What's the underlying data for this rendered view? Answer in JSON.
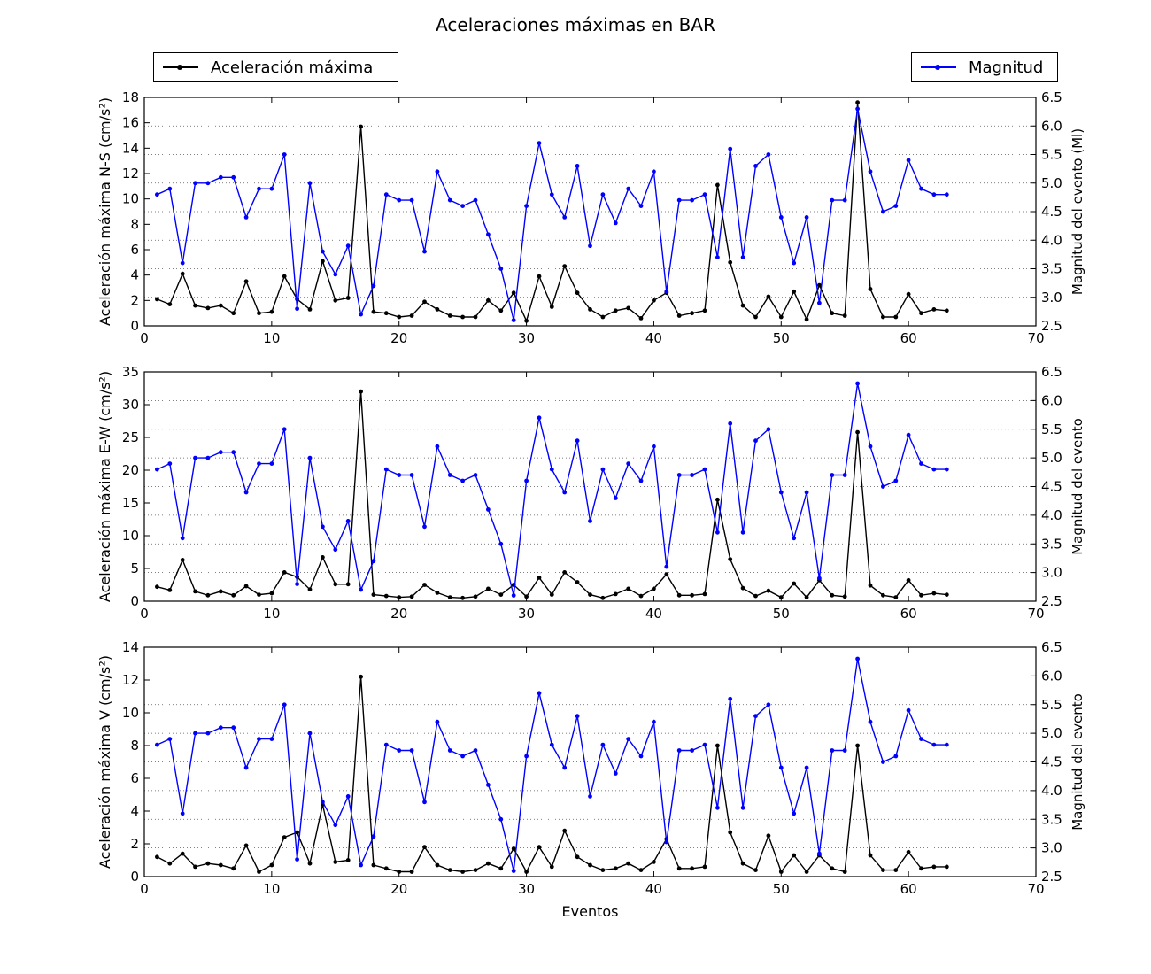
{
  "title": "Aceleraciones máximas en BAR",
  "legend": {
    "accel_label": "Aceleración máxima",
    "mag_label": "Magnitud"
  },
  "colors": {
    "accel": "#000000",
    "magnitude": "#0000ff",
    "grid": "#555555"
  },
  "chart_data": [
    {
      "type": "line",
      "xlabel": "",
      "ylabel": "Aceleración máxima N-S (cm/s²)",
      "ylabel_right": "Magnitud del evento (Ml)",
      "xlim": [
        0,
        70
      ],
      "ylim": [
        0,
        18
      ],
      "ylim_right": [
        2.5,
        6.5
      ],
      "xticks": [
        0,
        10,
        20,
        30,
        40,
        50,
        60,
        70
      ],
      "yticks": [
        0,
        2,
        4,
        6,
        8,
        10,
        12,
        14,
        16,
        18
      ],
      "yticks_right": [
        "2.5",
        "3.0",
        "3.5",
        "4.0",
        "4.5",
        "5.0",
        "5.5",
        "6.0",
        "6.5"
      ],
      "grid": "horizontal-dotted",
      "legend_placement": [
        "top-left",
        "top-right"
      ],
      "series": [
        {
          "name": "Aceleración máxima",
          "axis": "left",
          "values": [
            2.1,
            1.7,
            4.1,
            1.6,
            1.4,
            1.6,
            1.0,
            3.5,
            1.0,
            1.1,
            3.9,
            2.1,
            1.3,
            5.1,
            2.0,
            2.2,
            15.7,
            1.1,
            1.0,
            0.7,
            0.8,
            1.9,
            1.3,
            0.8,
            0.7,
            0.7,
            2.0,
            1.2,
            2.6,
            0.4,
            3.9,
            1.5,
            4.7,
            2.6,
            1.3,
            0.7,
            1.2,
            1.4,
            0.6,
            2.0,
            2.6,
            0.8,
            1.0,
            1.2,
            11.1,
            5.0,
            1.6,
            0.7,
            2.3,
            0.7,
            2.7,
            0.5,
            3.2,
            1.0,
            0.8,
            17.6,
            2.9,
            0.7,
            0.7,
            2.5,
            1.0,
            1.3,
            1.2
          ]
        },
        {
          "name": "Magnitud",
          "axis": "right",
          "values": [
            4.8,
            4.9,
            3.6,
            5.0,
            5.0,
            5.1,
            5.1,
            4.4,
            4.9,
            4.9,
            5.5,
            2.8,
            5.0,
            3.8,
            3.4,
            3.9,
            2.7,
            3.2,
            4.8,
            4.7,
            4.7,
            3.8,
            5.2,
            4.7,
            4.6,
            4.7,
            4.1,
            3.5,
            2.6,
            4.6,
            5.7,
            4.8,
            4.4,
            5.3,
            3.9,
            4.8,
            4.3,
            4.9,
            4.6,
            5.2,
            3.1,
            4.7,
            4.7,
            4.8,
            3.7,
            5.6,
            3.7,
            5.3,
            5.5,
            4.4,
            3.6,
            4.4,
            2.9,
            4.7,
            4.7,
            6.3,
            5.2,
            4.5,
            4.6,
            5.4,
            4.9,
            4.8,
            4.8
          ]
        }
      ]
    },
    {
      "type": "line",
      "xlabel": "",
      "ylabel": "Aceleración máxima E-W (cm/s²)",
      "ylabel_right": "Magnitud del evento",
      "xlim": [
        0,
        70
      ],
      "ylim": [
        0,
        35
      ],
      "ylim_right": [
        2.5,
        6.5
      ],
      "xticks": [
        0,
        10,
        20,
        30,
        40,
        50,
        60,
        70
      ],
      "yticks": [
        0,
        5,
        10,
        15,
        20,
        25,
        30,
        35
      ],
      "yticks_right": [
        "2.5",
        "3.0",
        "3.5",
        "4.0",
        "4.5",
        "5.0",
        "5.5",
        "6.0",
        "6.5"
      ],
      "grid": "horizontal-dotted",
      "series": [
        {
          "name": "Aceleración máxima",
          "axis": "left",
          "values": [
            2.2,
            1.7,
            6.3,
            1.5,
            0.9,
            1.5,
            0.9,
            2.3,
            1.0,
            1.2,
            4.4,
            3.7,
            1.8,
            6.7,
            2.6,
            2.6,
            32.0,
            1.0,
            0.8,
            0.6,
            0.7,
            2.5,
            1.3,
            0.6,
            0.5,
            0.7,
            1.9,
            1.0,
            2.5,
            0.7,
            3.6,
            1.0,
            4.4,
            2.9,
            1.0,
            0.5,
            1.1,
            1.9,
            0.8,
            1.9,
            4.1,
            0.9,
            0.9,
            1.1,
            15.5,
            6.4,
            2.0,
            0.8,
            1.6,
            0.6,
            2.7,
            0.6,
            3.2,
            0.9,
            0.7,
            25.8,
            2.4,
            0.9,
            0.6,
            3.2,
            0.9,
            1.2,
            1.0
          ]
        },
        {
          "name": "Magnitud",
          "axis": "right",
          "values": [
            4.8,
            4.9,
            3.6,
            5.0,
            5.0,
            5.1,
            5.1,
            4.4,
            4.9,
            4.9,
            5.5,
            2.8,
            5.0,
            3.8,
            3.4,
            3.9,
            2.7,
            3.2,
            4.8,
            4.7,
            4.7,
            3.8,
            5.2,
            4.7,
            4.6,
            4.7,
            4.1,
            3.5,
            2.6,
            4.6,
            5.7,
            4.8,
            4.4,
            5.3,
            3.9,
            4.8,
            4.3,
            4.9,
            4.6,
            5.2,
            3.1,
            4.7,
            4.7,
            4.8,
            3.7,
            5.6,
            3.7,
            5.3,
            5.5,
            4.4,
            3.6,
            4.4,
            2.9,
            4.7,
            4.7,
            6.3,
            5.2,
            4.5,
            4.6,
            5.4,
            4.9,
            4.8,
            4.8
          ]
        }
      ]
    },
    {
      "type": "line",
      "xlabel": "Eventos",
      "ylabel": "Aceleración máxima V (cm/s²)",
      "ylabel_right": "Magnitud del evento",
      "xlim": [
        0,
        70
      ],
      "ylim": [
        0,
        14
      ],
      "ylim_right": [
        2.5,
        6.5
      ],
      "xticks": [
        0,
        10,
        20,
        30,
        40,
        50,
        60,
        70
      ],
      "yticks": [
        0,
        2,
        4,
        6,
        8,
        10,
        12,
        14
      ],
      "yticks_right": [
        "2.5",
        "3.0",
        "3.5",
        "4.0",
        "4.5",
        "5.0",
        "5.5",
        "6.0",
        "6.5"
      ],
      "grid": "horizontal-dotted",
      "series": [
        {
          "name": "Aceleración máxima",
          "axis": "left",
          "values": [
            1.2,
            0.8,
            1.4,
            0.6,
            0.8,
            0.7,
            0.5,
            1.9,
            0.3,
            0.7,
            2.4,
            2.7,
            0.8,
            4.4,
            0.9,
            1.0,
            12.2,
            0.7,
            0.5,
            0.3,
            0.3,
            1.8,
            0.7,
            0.4,
            0.3,
            0.4,
            0.8,
            0.5,
            1.7,
            0.3,
            1.8,
            0.6,
            2.8,
            1.2,
            0.7,
            0.4,
            0.5,
            0.8,
            0.4,
            0.9,
            2.3,
            0.5,
            0.5,
            0.6,
            8.0,
            2.7,
            0.8,
            0.4,
            2.5,
            0.3,
            1.3,
            0.3,
            1.3,
            0.5,
            0.3,
            8.0,
            1.3,
            0.4,
            0.4,
            1.5,
            0.5,
            0.6,
            0.6
          ]
        },
        {
          "name": "Magnitud",
          "axis": "right",
          "values": [
            4.8,
            4.9,
            3.6,
            5.0,
            5.0,
            5.1,
            5.1,
            4.4,
            4.9,
            4.9,
            5.5,
            2.8,
            5.0,
            3.8,
            3.4,
            3.9,
            2.7,
            3.2,
            4.8,
            4.7,
            4.7,
            3.8,
            5.2,
            4.7,
            4.6,
            4.7,
            4.1,
            3.5,
            2.6,
            4.6,
            5.7,
            4.8,
            4.4,
            5.3,
            3.9,
            4.8,
            4.3,
            4.9,
            4.6,
            5.2,
            3.1,
            4.7,
            4.7,
            4.8,
            3.7,
            5.6,
            3.7,
            5.3,
            5.5,
            4.4,
            3.6,
            4.4,
            2.9,
            4.7,
            4.7,
            6.3,
            5.2,
            4.5,
            4.6,
            5.4,
            4.9,
            4.8,
            4.8
          ]
        }
      ]
    }
  ]
}
